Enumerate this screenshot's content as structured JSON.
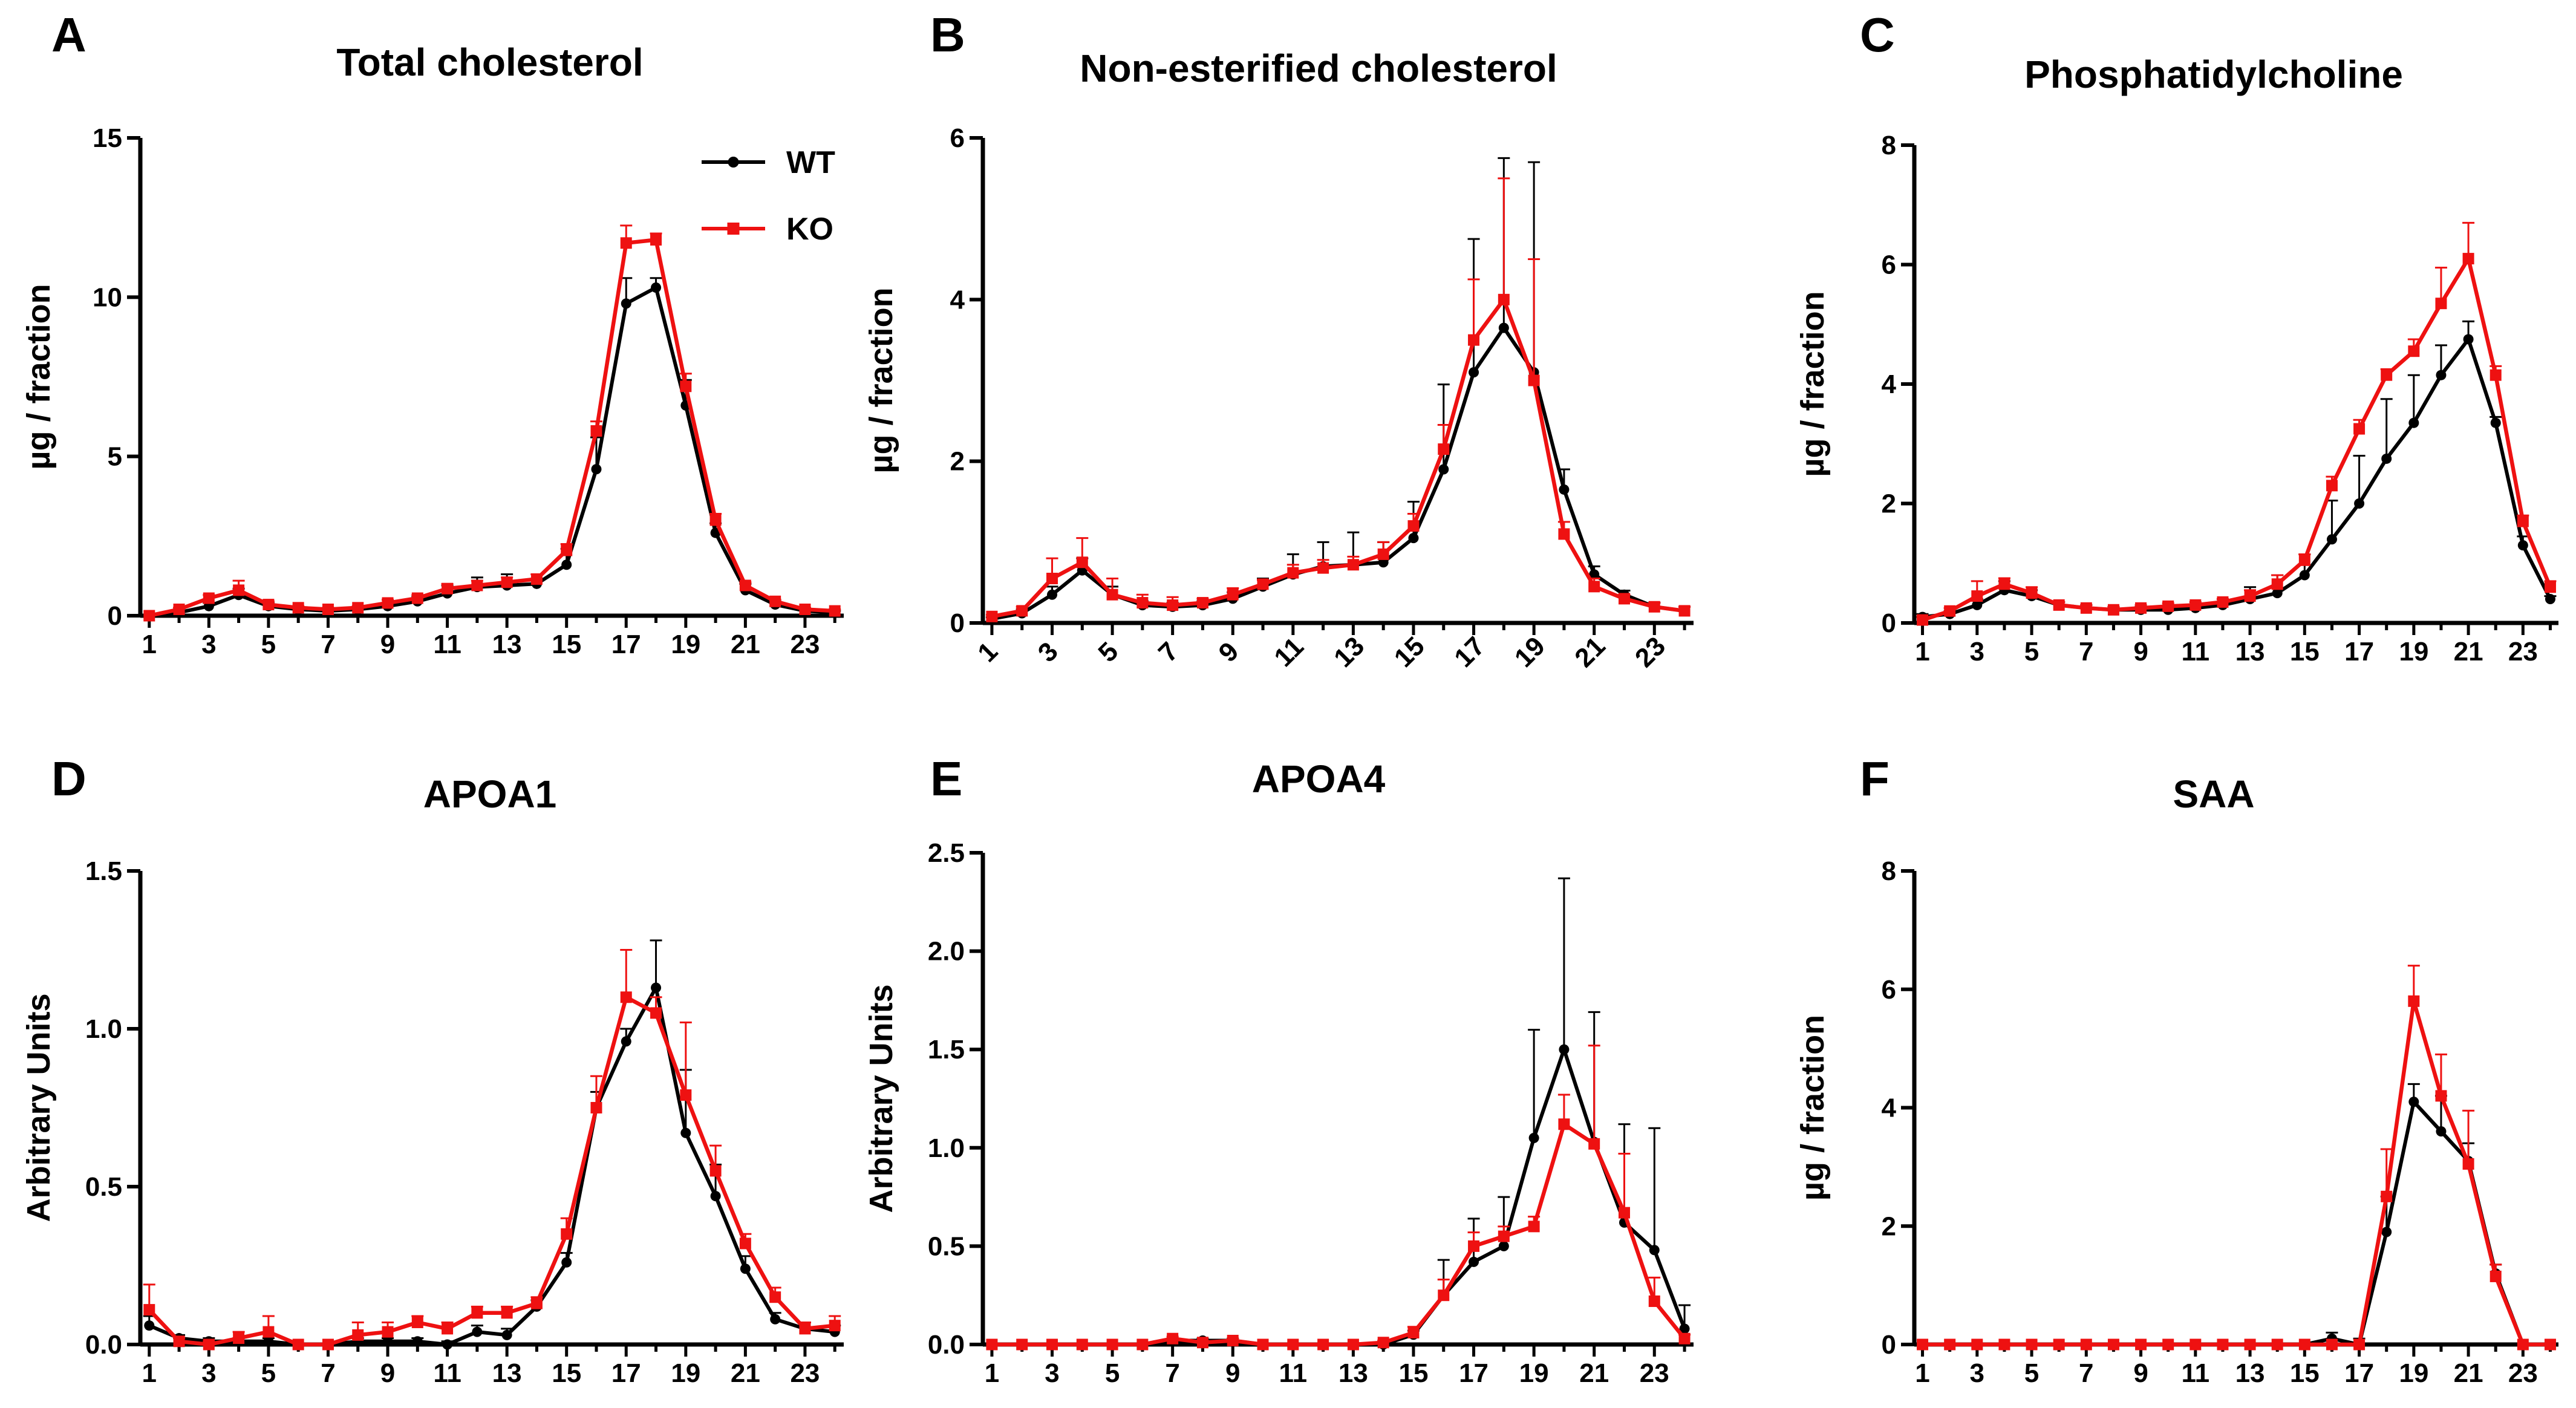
{
  "figure": {
    "legend": {
      "wt_label": "WT",
      "ko_label": "KO"
    }
  },
  "colors": {
    "wt": "#000000",
    "ko": "#ee1111",
    "axis": "#000000"
  },
  "chart_data": [
    {
      "letter": "A",
      "type": "line",
      "title": "Total cholesterol",
      "xlabel": "",
      "ylabel": "µg / fraction",
      "ylim": [
        0,
        15
      ],
      "yticks": [
        0,
        5,
        10,
        15
      ],
      "ytick_labels": [
        "0",
        "5",
        "10",
        "15"
      ],
      "x": [
        1,
        2,
        3,
        4,
        5,
        6,
        7,
        8,
        9,
        10,
        11,
        12,
        13,
        14,
        15,
        16,
        17,
        18,
        19,
        20,
        21,
        22,
        23,
        24
      ],
      "xtick_labels": [
        "1",
        "3",
        "5",
        "7",
        "9",
        "11",
        "13",
        "15",
        "17",
        "19",
        "21",
        "23"
      ],
      "xtick_rotated": false,
      "show_legend": true,
      "series": [
        {
          "name": "WT",
          "values": [
            0,
            0.1,
            0.3,
            0.65,
            0.3,
            0.2,
            0.15,
            0.2,
            0.3,
            0.45,
            0.7,
            0.9,
            0.95,
            1.0,
            1.6,
            4.6,
            9.8,
            10.3,
            6.6,
            2.6,
            0.8,
            0.35,
            0.15,
            0.1
          ],
          "errors": [
            0,
            0.05,
            0.1,
            0.2,
            0.1,
            0.05,
            0.05,
            0.05,
            0.1,
            0.15,
            0.25,
            0.3,
            0.35,
            0.3,
            0.5,
            1.0,
            0.8,
            0.3,
            0.8,
            0.3,
            0.2,
            0.1,
            0.05,
            0.05
          ]
        },
        {
          "name": "KO",
          "values": [
            0,
            0.2,
            0.55,
            0.8,
            0.35,
            0.25,
            0.2,
            0.25,
            0.4,
            0.55,
            0.85,
            0.95,
            1.05,
            1.15,
            2.05,
            5.8,
            11.7,
            11.8,
            7.2,
            3.0,
            0.95,
            0.45,
            0.2,
            0.15
          ],
          "errors": [
            0,
            0.05,
            0.1,
            0.3,
            0.1,
            0.05,
            0.05,
            0.05,
            0.1,
            0.1,
            0.15,
            0.15,
            0.15,
            0.15,
            0.2,
            0.3,
            0.55,
            0.2,
            0.4,
            0.2,
            0.1,
            0.05,
            0.05,
            0.05
          ]
        }
      ]
    },
    {
      "letter": "B",
      "type": "line",
      "title": "Non-esterified cholesterol",
      "xlabel": "",
      "ylabel": "µg / fraction",
      "ylim": [
        0,
        6
      ],
      "yticks": [
        0,
        2,
        4,
        6
      ],
      "ytick_labels": [
        "0",
        "2",
        "4",
        "6"
      ],
      "x": [
        1,
        2,
        3,
        4,
        5,
        6,
        7,
        8,
        9,
        10,
        11,
        12,
        13,
        14,
        15,
        16,
        17,
        18,
        19,
        20,
        21,
        22,
        23,
        24
      ],
      "xtick_labels": [
        "1",
        "3",
        "5",
        "7",
        "9",
        "11",
        "13",
        "15",
        "17",
        "19",
        "21",
        "23"
      ],
      "xtick_rotated": true,
      "show_legend": false,
      "series": [
        {
          "name": "WT",
          "values": [
            0.05,
            0.12,
            0.35,
            0.65,
            0.35,
            0.22,
            0.2,
            0.22,
            0.3,
            0.45,
            0.6,
            0.7,
            0.72,
            0.75,
            1.05,
            1.9,
            3.1,
            3.65,
            3.1,
            1.65,
            0.6,
            0.35,
            0.2,
            0.15
          ],
          "errors": [
            0.02,
            0.05,
            0.1,
            0.15,
            0.1,
            0.05,
            0.05,
            0.05,
            0.08,
            0.1,
            0.25,
            0.3,
            0.4,
            0.25,
            0.45,
            1.05,
            1.65,
            2.1,
            2.6,
            0.25,
            0.1,
            0.05,
            0.05,
            0.05
          ]
        },
        {
          "name": "KO",
          "values": [
            0.08,
            0.15,
            0.55,
            0.75,
            0.35,
            0.25,
            0.22,
            0.25,
            0.35,
            0.48,
            0.62,
            0.68,
            0.72,
            0.85,
            1.2,
            2.15,
            3.5,
            4.0,
            3.0,
            1.1,
            0.45,
            0.3,
            0.2,
            0.15
          ],
          "errors": [
            0.02,
            0.05,
            0.25,
            0.3,
            0.2,
            0.1,
            0.1,
            0.05,
            0.08,
            0.05,
            0.1,
            0.1,
            0.1,
            0.15,
            0.15,
            0.3,
            0.75,
            1.5,
            1.5,
            0.15,
            0.1,
            0.05,
            0.05,
            0.05
          ]
        }
      ]
    },
    {
      "letter": "C",
      "type": "line",
      "title": "Phosphatidylcholine",
      "xlabel": "",
      "ylabel": "µg / fraction",
      "ylim": [
        0,
        8
      ],
      "yticks": [
        0,
        2,
        4,
        6,
        8
      ],
      "ytick_labels": [
        "0",
        "2",
        "4",
        "6",
        "8"
      ],
      "x": [
        1,
        2,
        3,
        4,
        5,
        6,
        7,
        8,
        9,
        10,
        11,
        12,
        13,
        14,
        15,
        16,
        17,
        18,
        19,
        20,
        21,
        22,
        23,
        24
      ],
      "xtick_labels": [
        "1",
        "3",
        "5",
        "7",
        "9",
        "11",
        "13",
        "15",
        "17",
        "19",
        "21",
        "23"
      ],
      "xtick_rotated": false,
      "show_legend": false,
      "series": [
        {
          "name": "WT",
          "values": [
            0.1,
            0.15,
            0.3,
            0.55,
            0.45,
            0.3,
            0.25,
            0.22,
            0.22,
            0.22,
            0.25,
            0.3,
            0.4,
            0.5,
            0.8,
            1.4,
            2.0,
            2.75,
            3.35,
            4.15,
            4.75,
            3.35,
            1.3,
            0.4
          ],
          "errors": [
            0.05,
            0.05,
            0.1,
            0.15,
            0.1,
            0.05,
            0.05,
            0.05,
            0.05,
            0.05,
            0.05,
            0.1,
            0.2,
            0.3,
            0.35,
            0.65,
            0.8,
            1.0,
            0.8,
            0.5,
            0.3,
            0.1,
            0.15,
            0.05
          ]
        },
        {
          "name": "KO",
          "values": [
            0.05,
            0.2,
            0.45,
            0.65,
            0.5,
            0.3,
            0.25,
            0.22,
            0.25,
            0.28,
            0.3,
            0.35,
            0.45,
            0.65,
            1.05,
            2.3,
            3.25,
            4.15,
            4.55,
            5.35,
            6.1,
            4.15,
            1.7,
            0.6
          ],
          "errors": [
            0.05,
            0.05,
            0.25,
            0.1,
            0.1,
            0.05,
            0.05,
            0.05,
            0.05,
            0.05,
            0.05,
            0.05,
            0.1,
            0.15,
            0.1,
            0.15,
            0.15,
            0.1,
            0.2,
            0.6,
            0.6,
            0.15,
            0.1,
            0.1
          ]
        }
      ]
    },
    {
      "letter": "D",
      "type": "line",
      "title": "APOA1",
      "xlabel": "",
      "ylabel": "Arbitrary Units",
      "ylim": [
        0,
        1.5
      ],
      "yticks": [
        0,
        0.5,
        1.0,
        1.5
      ],
      "ytick_labels": [
        "0.0",
        "0.5",
        "1.0",
        "1.5"
      ],
      "x": [
        1,
        2,
        3,
        4,
        5,
        6,
        7,
        8,
        9,
        10,
        11,
        12,
        13,
        14,
        15,
        16,
        17,
        18,
        19,
        20,
        21,
        22,
        23,
        24
      ],
      "xtick_labels": [
        "1",
        "3",
        "5",
        "7",
        "9",
        "11",
        "13",
        "15",
        "17",
        "19",
        "21",
        "23"
      ],
      "xtick_rotated": false,
      "show_legend": false,
      "series": [
        {
          "name": "WT",
          "values": [
            0.06,
            0.02,
            0.01,
            0.01,
            0.01,
            0.0,
            0.0,
            0.01,
            0.01,
            0.01,
            0.0,
            0.04,
            0.03,
            0.12,
            0.26,
            0.75,
            0.96,
            1.13,
            0.67,
            0.47,
            0.24,
            0.08,
            0.05,
            0.04
          ],
          "errors": [
            0.03,
            0.01,
            0.01,
            0.01,
            0.01,
            0.0,
            0.0,
            0.01,
            0.01,
            0.01,
            0.01,
            0.02,
            0.02,
            0.02,
            0.03,
            0.05,
            0.04,
            0.15,
            0.2,
            0.1,
            0.04,
            0.02,
            0.02,
            0.02
          ]
        },
        {
          "name": "KO",
          "values": [
            0.11,
            0.01,
            0.0,
            0.02,
            0.04,
            0.0,
            0.0,
            0.03,
            0.04,
            0.07,
            0.05,
            0.1,
            0.1,
            0.13,
            0.35,
            0.75,
            1.1,
            1.05,
            0.79,
            0.55,
            0.32,
            0.15,
            0.05,
            0.06
          ],
          "errors": [
            0.08,
            0.01,
            0.01,
            0.02,
            0.05,
            0.0,
            0.0,
            0.04,
            0.03,
            0.02,
            0.02,
            0.02,
            0.02,
            0.02,
            0.05,
            0.1,
            0.15,
            0.05,
            0.23,
            0.08,
            0.03,
            0.03,
            0.02,
            0.03
          ]
        }
      ]
    },
    {
      "letter": "E",
      "type": "line",
      "title": "APOA4",
      "xlabel": "",
      "ylabel": "Arbitrary Units",
      "ylim": [
        0,
        2.5
      ],
      "yticks": [
        0,
        0.5,
        1.0,
        1.5,
        2.0,
        2.5
      ],
      "ytick_labels": [
        "0.0",
        "0.5",
        "1.0",
        "1.5",
        "2.0",
        "2.5"
      ],
      "x": [
        1,
        2,
        3,
        4,
        5,
        6,
        7,
        8,
        9,
        10,
        11,
        12,
        13,
        14,
        15,
        16,
        17,
        18,
        19,
        20,
        21,
        22,
        23,
        24
      ],
      "xtick_labels": [
        "1",
        "3",
        "5",
        "7",
        "9",
        "11",
        "13",
        "15",
        "17",
        "19",
        "21",
        "23"
      ],
      "xtick_rotated": false,
      "show_legend": false,
      "series": [
        {
          "name": "WT",
          "values": [
            0,
            0,
            0,
            0,
            0,
            0,
            0.02,
            0.02,
            0.02,
            0,
            0,
            0,
            0,
            0,
            0.05,
            0.25,
            0.42,
            0.5,
            1.05,
            1.5,
            1.03,
            0.62,
            0.48,
            0.08
          ],
          "errors": [
            0,
            0,
            0,
            0,
            0,
            0,
            0.01,
            0.01,
            0.01,
            0,
            0,
            0,
            0,
            0.01,
            0.02,
            0.18,
            0.22,
            0.25,
            0.55,
            0.87,
            0.66,
            0.5,
            0.62,
            0.12
          ]
        },
        {
          "name": "KO",
          "values": [
            0,
            0,
            0,
            0,
            0,
            0,
            0.03,
            0.01,
            0.02,
            0,
            0,
            0,
            0,
            0.01,
            0.06,
            0.25,
            0.5,
            0.55,
            0.6,
            1.12,
            1.02,
            0.67,
            0.22,
            0.03
          ],
          "errors": [
            0,
            0,
            0,
            0,
            0,
            0,
            0.01,
            0.01,
            0.01,
            0,
            0,
            0,
            0,
            0.01,
            0.03,
            0.08,
            0.07,
            0.05,
            0.05,
            0.15,
            0.5,
            0.3,
            0.12,
            0.02
          ]
        }
      ]
    },
    {
      "letter": "F",
      "type": "line",
      "title": "SAA",
      "xlabel": "",
      "ylabel": "µg / fraction",
      "ylim": [
        0,
        8
      ],
      "yticks": [
        0,
        2,
        4,
        6,
        8
      ],
      "ytick_labels": [
        "0",
        "2",
        "4",
        "6",
        "8"
      ],
      "x": [
        1,
        2,
        3,
        4,
        5,
        6,
        7,
        8,
        9,
        10,
        11,
        12,
        13,
        14,
        15,
        16,
        17,
        18,
        19,
        20,
        21,
        22,
        23,
        24
      ],
      "xtick_labels": [
        "1",
        "3",
        "5",
        "7",
        "9",
        "11",
        "13",
        "15",
        "17",
        "19",
        "21",
        "23"
      ],
      "xtick_rotated": false,
      "show_legend": false,
      "series": [
        {
          "name": "WT",
          "values": [
            0,
            0,
            0,
            0,
            0,
            0,
            0,
            0,
            0,
            0,
            0,
            0,
            0,
            0,
            0,
            0.1,
            0,
            1.9,
            4.1,
            3.6,
            3.1,
            1.2,
            0,
            0
          ],
          "errors": [
            0,
            0,
            0,
            0,
            0,
            0,
            0,
            0,
            0,
            0,
            0,
            0,
            0,
            0,
            0,
            0.1,
            0.1,
            0.6,
            0.3,
            0.6,
            0.3,
            0.15,
            0,
            0
          ]
        },
        {
          "name": "KO",
          "values": [
            0,
            0,
            0,
            0,
            0,
            0,
            0,
            0,
            0,
            0,
            0,
            0,
            0,
            0,
            0,
            0,
            0,
            2.5,
            5.8,
            4.2,
            3.05,
            1.15,
            0,
            0
          ],
          "errors": [
            0,
            0,
            0,
            0,
            0,
            0,
            0,
            0,
            0,
            0,
            0,
            0,
            0,
            0,
            0,
            0,
            0,
            0.8,
            0.6,
            0.7,
            0.9,
            0.2,
            0,
            0
          ]
        }
      ]
    }
  ]
}
